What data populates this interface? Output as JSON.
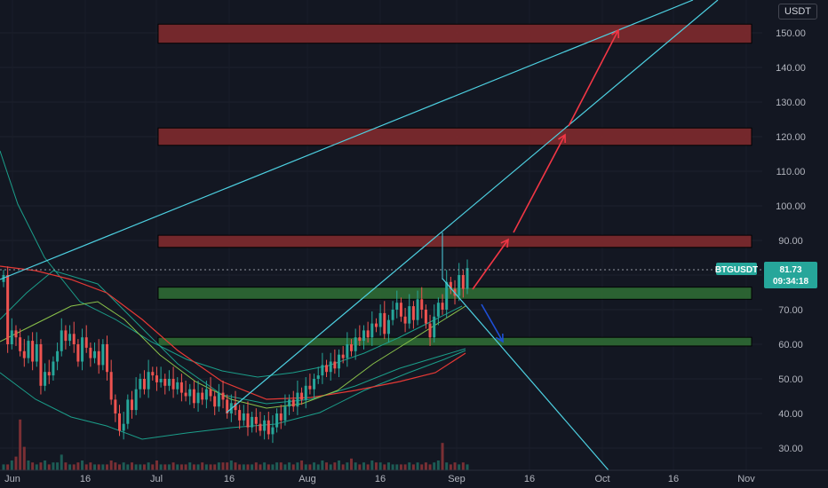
{
  "currency": "USDT",
  "chart_data": {
    "type": "candlestick",
    "symbol": "BTGUSDT",
    "last_price": "81.73",
    "countdown": "09:34:18",
    "ylim": [
      23,
      162
    ],
    "y_ticks": [
      "150.00",
      "140.00",
      "130.00",
      "120.00",
      "110.00",
      "100.00",
      "90.00",
      "80.00",
      "70.00",
      "60.00",
      "50.00",
      "40.00",
      "30.00"
    ],
    "x_ticks": [
      "Jun",
      "16",
      "Jul",
      "16",
      "Aug",
      "16",
      "Sep",
      "16",
      "Oct",
      "16",
      "Nov"
    ],
    "zones": [
      {
        "kind": "resistance",
        "from": 147,
        "to": 152.5
      },
      {
        "kind": "resistance",
        "from": 117.5,
        "to": 122.5
      },
      {
        "kind": "resistance",
        "from": 88,
        "to": 91.5
      },
      {
        "kind": "support",
        "from": 73,
        "to": 76.5
      },
      {
        "kind": "support",
        "from": 59.5,
        "to": 62
      }
    ],
    "colors": {
      "background": "#131722",
      "up": "#26a69a",
      "down": "#ef5350",
      "trendline": "#4dd0e1",
      "bull_arrow": "#f23645",
      "bear_arrow": "#1e4fd6",
      "resistance_zone": "#7f2a2e",
      "support_zone": "#2e6b34",
      "ma_red": "#e53935",
      "ma_green": "#8bc34a",
      "band": "#1b9e8a",
      "price_badge": "#26a69a"
    },
    "close_series": [
      80,
      60,
      64,
      62,
      58,
      56,
      61,
      55,
      60,
      48,
      52,
      51,
      55,
      58,
      64,
      61,
      63,
      60,
      55,
      62,
      59,
      56,
      58,
      54,
      60,
      52,
      44,
      40,
      35,
      37,
      44,
      41,
      47,
      50,
      47,
      52,
      51,
      49,
      50,
      48,
      50,
      47,
      49,
      46,
      45,
      47,
      43,
      46,
      44,
      47,
      45,
      42,
      46,
      44,
      40,
      43,
      41,
      38,
      40,
      36,
      39,
      37,
      35,
      38,
      34,
      36,
      40,
      38,
      42,
      44,
      42,
      46,
      44,
      48,
      47,
      50,
      51,
      54,
      52,
      55,
      53,
      57,
      56,
      60,
      58,
      62,
      61,
      64,
      62,
      66,
      65,
      69,
      63,
      67,
      70,
      72,
      68,
      66,
      71,
      67,
      73,
      70,
      66,
      62,
      68,
      72,
      70,
      78,
      76,
      74,
      80,
      76,
      82
    ],
    "volume_bars": [
      3,
      3,
      5,
      7,
      26,
      12,
      5,
      4,
      3,
      4,
      5,
      3,
      4,
      4,
      8,
      4,
      3,
      3,
      4,
      5,
      3,
      4,
      3,
      3,
      3,
      3,
      5,
      4,
      3,
      4,
      3,
      4,
      3,
      3,
      3,
      4,
      3,
      5,
      3,
      3,
      3,
      4,
      3,
      3,
      3,
      4,
      3,
      3,
      4,
      3,
      3,
      3,
      4,
      4,
      4,
      5,
      4,
      3,
      3,
      3,
      3,
      4,
      3,
      4,
      3,
      3,
      4,
      4,
      3,
      4,
      3,
      4,
      5,
      3,
      3,
      4,
      3,
      5,
      4,
      3,
      4,
      5,
      3,
      4,
      6,
      4,
      3,
      4,
      3,
      5,
      4,
      4,
      3,
      4,
      3,
      3,
      3,
      3,
      4,
      3,
      4,
      3,
      4,
      3,
      4,
      5,
      14,
      4,
      3,
      4,
      3,
      4,
      3
    ]
  }
}
